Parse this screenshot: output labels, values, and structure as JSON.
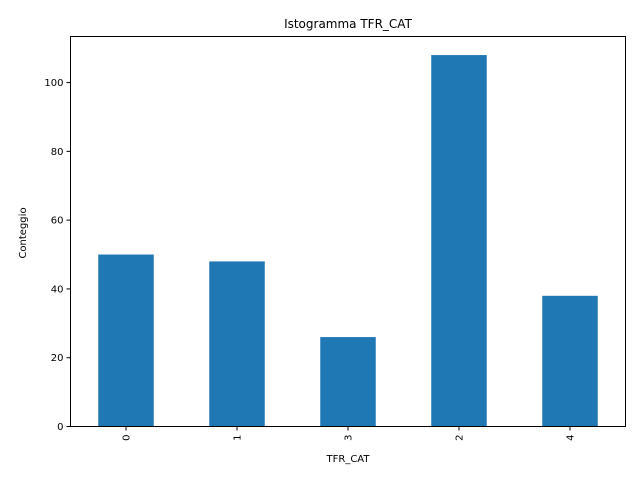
{
  "chart_data": {
    "type": "bar",
    "title": "Istogramma TFR_CAT",
    "xlabel": "TFR_CAT",
    "ylabel": "Conteggio",
    "categories": [
      "0",
      "1",
      "3",
      "2",
      "4"
    ],
    "values": [
      50,
      48,
      26,
      108,
      38
    ],
    "ylim": [
      0,
      113.4
    ],
    "yticks": [
      0,
      20,
      40,
      60,
      80,
      100
    ],
    "grid": false,
    "bar_color": "#1f77b4",
    "legend": "none"
  }
}
